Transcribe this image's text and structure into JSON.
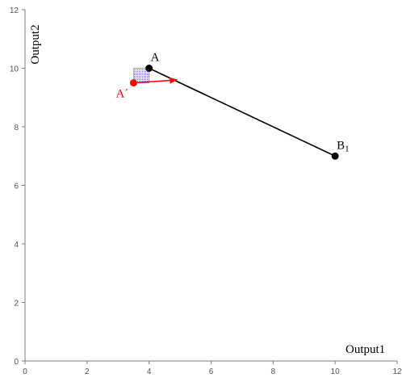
{
  "chart_data": {
    "type": "scatter",
    "xlabel": "Output1",
    "ylabel": "Output2",
    "xlim": [
      0,
      12
    ],
    "ylim": [
      0,
      12
    ],
    "x_ticks": [
      "0",
      "2",
      "4",
      "6",
      "8",
      "10",
      "12"
    ],
    "y_ticks": [
      "0",
      "2",
      "4",
      "6",
      "8",
      "10",
      "12"
    ],
    "grid": false,
    "points": [
      {
        "label": "A",
        "x": 4,
        "y": 10,
        "color": "#000000"
      },
      {
        "label": "B",
        "subscript": "1",
        "x": 10,
        "y": 7,
        "color": "#000000"
      },
      {
        "label": "A´",
        "x": 3.5,
        "y": 9.5,
        "color": "#ff0000"
      }
    ],
    "segments": [
      {
        "from": "A",
        "to": "B1",
        "color": "#000000"
      }
    ],
    "arrow": {
      "from": [
        3.5,
        9.5
      ],
      "to": [
        4.9,
        9.6
      ],
      "color": "#ff0000"
    },
    "shaded_region": {
      "x": [
        3.5,
        4.0
      ],
      "y": [
        9.5,
        10.0
      ],
      "color": "#5b6fa8"
    }
  }
}
